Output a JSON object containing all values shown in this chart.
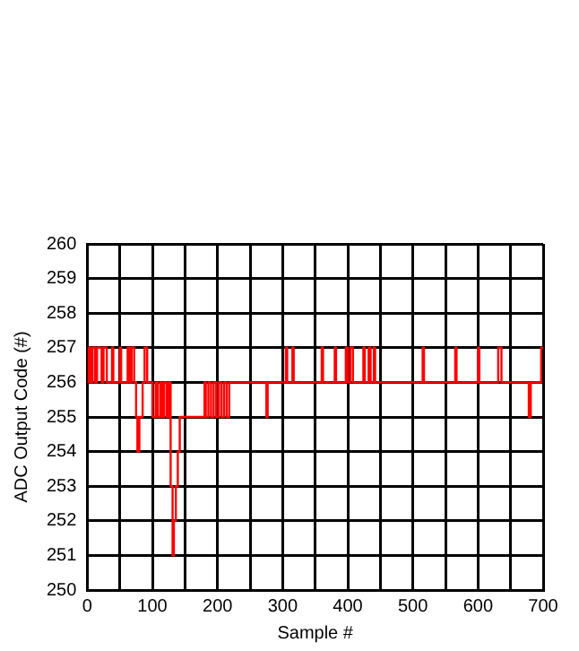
{
  "chart_data": {
    "type": "step",
    "xlabel": "Sample #",
    "ylabel": "ADC Output Code (#)",
    "xlim": [
      0,
      700
    ],
    "xticks": [
      0,
      {
        "value": 50,
        "label": null
      },
      100,
      {
        "value": 150,
        "label": null
      },
      200,
      {
        "value": 250,
        "label": null
      },
      300,
      {
        "value": 350,
        "label": null
      },
      400,
      {
        "value": 450,
        "label": null
      },
      500,
      {
        "value": 550,
        "label": null
      },
      600,
      {
        "value": 650,
        "label": null
      },
      700
    ],
    "ylim": [
      250,
      260
    ],
    "yticks": [
      250,
      251,
      252,
      253,
      254,
      255,
      256,
      257,
      258,
      259,
      260
    ],
    "grid": true,
    "legend": false,
    "marker": "none",
    "line_style": "solid",
    "series": [
      {
        "color": "#ff0000",
        "x": [
          0,
          2,
          5,
          8,
          12,
          15,
          22,
          25,
          30,
          38,
          40,
          50,
          52,
          62,
          65,
          68,
          72,
          75,
          77,
          80,
          85,
          88,
          92,
          100,
          105,
          108,
          112,
          115,
          118,
          122,
          125,
          128,
          131,
          133,
          136,
          139,
          142,
          180,
          182,
          186,
          190,
          194,
          198,
          202,
          206,
          210,
          214,
          218,
          275,
          277,
          305,
          307,
          315,
          317,
          360,
          362,
          380,
          382,
          397,
          400,
          404,
          408,
          424,
          426,
          432,
          435,
          440,
          442,
          515,
          517,
          565,
          567,
          600,
          602,
          631,
          636,
          678,
          681,
          697,
          700
        ],
        "values": [
          256,
          257,
          256,
          257,
          256,
          257,
          256,
          257,
          256,
          257,
          256,
          257,
          256,
          257,
          256,
          257,
          256,
          255,
          254,
          255,
          256,
          257,
          256,
          255,
          256,
          255,
          256,
          255,
          256,
          255,
          256,
          253,
          251,
          252,
          253,
          254,
          255,
          256,
          255,
          256,
          255,
          256,
          255,
          256,
          255,
          256,
          255,
          256,
          255,
          256,
          257,
          256,
          257,
          256,
          257,
          256,
          257,
          256,
          257,
          256,
          257,
          256,
          257,
          256,
          257,
          256,
          257,
          256,
          257,
          256,
          257,
          256,
          257,
          256,
          257,
          256,
          255,
          256,
          257,
          257
        ]
      }
    ]
  }
}
